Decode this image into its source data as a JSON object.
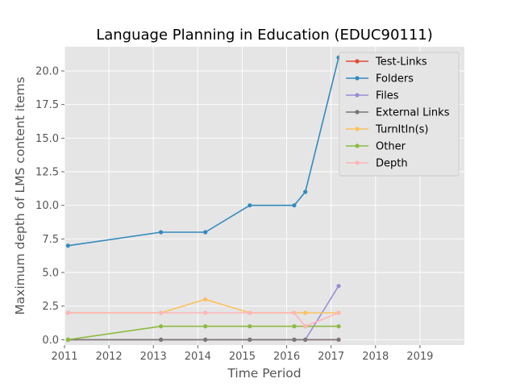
{
  "chart_data": {
    "type": "line",
    "title": "Language Planning in Education (EDUC90111)",
    "xlabel": "Time Period",
    "ylabel": "Maximum depth of LMS content items",
    "xlim": [
      2011.0,
      2020.0
    ],
    "ylim": [
      -0.4,
      21.8
    ],
    "x_ticks": [
      2011,
      2012,
      2013,
      2014,
      2015,
      2016,
      2017,
      2018,
      2019
    ],
    "x_tick_labels": [
      "2011",
      "2012",
      "2013",
      "2014",
      "2015",
      "2016",
      "2017",
      "2018",
      "2019"
    ],
    "y_ticks": [
      0,
      2.5,
      5,
      7.5,
      10,
      12.5,
      15,
      17.5,
      20
    ],
    "y_tick_labels": [
      "0.0",
      "2.5",
      "5.0",
      "7.5",
      "10.0",
      "12.5",
      "15.0",
      "17.5",
      "20.0"
    ],
    "grid": true,
    "legend_position": "top-right",
    "series": [
      {
        "name": "Test-Links",
        "color": "#E24A33",
        "x": [
          2011.08,
          2013.17,
          2014.17,
          2015.17,
          2016.17,
          2016.42,
          2017.17
        ],
        "y": [
          0,
          0,
          0,
          0,
          0,
          0,
          0
        ]
      },
      {
        "name": "Folders",
        "color": "#348ABD",
        "x": [
          2011.08,
          2013.17,
          2014.17,
          2015.17,
          2016.17,
          2016.42,
          2017.17
        ],
        "y": [
          7,
          8,
          8,
          10,
          10,
          11,
          21
        ]
      },
      {
        "name": "Files",
        "color": "#988ED5",
        "x": [
          2011.08,
          2013.17,
          2014.17,
          2015.17,
          2016.17,
          2016.42,
          2017.17
        ],
        "y": [
          0,
          0,
          0,
          0,
          0,
          0,
          4
        ]
      },
      {
        "name": "External Links",
        "color": "#777777",
        "x": [
          2011.08,
          2013.17,
          2014.17,
          2015.17,
          2016.17,
          2016.42,
          2017.17
        ],
        "y": [
          0,
          0,
          0,
          0,
          0,
          0,
          0
        ]
      },
      {
        "name": "TurnItIn(s)",
        "color": "#FBC15E",
        "x": [
          2011.08,
          2013.17,
          2014.17,
          2015.17,
          2016.17,
          2016.42,
          2017.17
        ],
        "y": [
          2,
          2,
          3,
          2,
          2,
          2,
          2
        ]
      },
      {
        "name": "Other",
        "color": "#8EBA42",
        "x": [
          2011.08,
          2013.17,
          2014.17,
          2015.17,
          2016.17,
          2016.42,
          2017.17
        ],
        "y": [
          0,
          1,
          1,
          1,
          1,
          1,
          1
        ]
      },
      {
        "name": "Depth",
        "color": "#FFB5B8",
        "x": [
          2011.08,
          2013.17,
          2014.17,
          2015.17,
          2016.17,
          2016.42,
          2017.17
        ],
        "y": [
          2,
          2,
          2,
          2,
          2,
          1,
          2
        ]
      }
    ]
  }
}
